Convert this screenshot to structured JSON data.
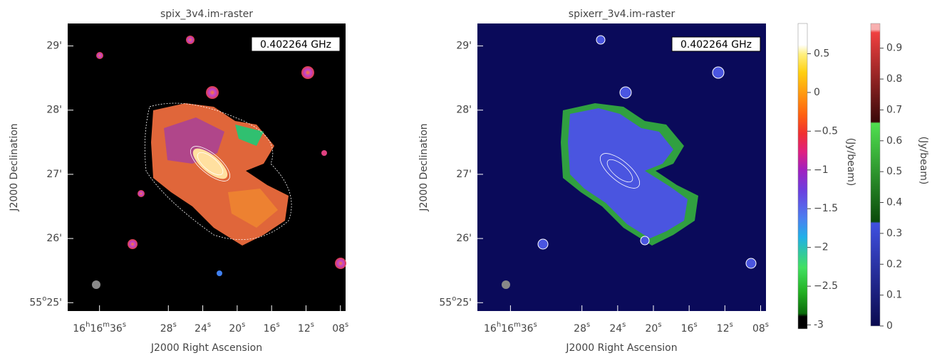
{
  "panels": [
    {
      "title": "spix_3v4.im-raster",
      "frequency": "0.402264 GHz",
      "xlabel": "J2000 Right Ascension",
      "ylabel": "J2000 Declination",
      "ralim": [
        39.7,
        7.4
      ],
      "declim": [
        24.87,
        29.35
      ],
      "rati": [
        {
          "value": 36,
          "label": [
            "16",
            "h",
            "16",
            "m",
            "36",
            "s"
          ]
        },
        {
          "value": 28,
          "label": [
            "28",
            "s"
          ]
        },
        {
          "value": 24,
          "label": [
            "24",
            "s"
          ]
        },
        {
          "value": 20,
          "label": [
            "20",
            "s"
          ]
        },
        {
          "value": 16,
          "label": [
            "16",
            "s"
          ]
        },
        {
          "value": 12,
          "label": [
            "12",
            "s"
          ]
        },
        {
          "value": 8,
          "label": [
            "08",
            "s"
          ]
        }
      ],
      "decticks": [
        {
          "value": 29,
          "label": [
            "29'"
          ]
        },
        {
          "value": 28,
          "label": [
            "28'"
          ]
        },
        {
          "value": 27,
          "label": [
            "27'"
          ]
        },
        {
          "value": 26,
          "label": [
            "26'"
          ]
        },
        {
          "value": 25,
          "label": [
            "55",
            "o",
            "25'"
          ]
        }
      ]
    },
    {
      "title": "spixerr_3v4.im-raster",
      "frequency": "0.402264 GHz",
      "xlabel": "J2000 Right Ascension",
      "ylabel": "J2000 Declination",
      "ralim": [
        39.7,
        7.4
      ],
      "declim": [
        24.87,
        29.35
      ],
      "rati": [
        {
          "value": 36,
          "label": [
            "16",
            "h",
            "16",
            "m",
            "36",
            "s"
          ]
        },
        {
          "value": 28,
          "label": [
            "28",
            "s"
          ]
        },
        {
          "value": 24,
          "label": [
            "24",
            "s"
          ]
        },
        {
          "value": 20,
          "label": [
            "20",
            "s"
          ]
        },
        {
          "value": 16,
          "label": [
            "16",
            "s"
          ]
        },
        {
          "value": 12,
          "label": [
            "12",
            "s"
          ]
        },
        {
          "value": 8,
          "label": [
            "08",
            "s"
          ]
        }
      ],
      "decticks": [
        {
          "value": 29,
          "label": [
            "29'"
          ]
        },
        {
          "value": 28,
          "label": [
            "28'"
          ]
        },
        {
          "value": 27,
          "label": [
            "27'"
          ]
        },
        {
          "value": 26,
          "label": [
            "26'"
          ]
        },
        {
          "value": 25,
          "label": [
            "55",
            "o",
            "25'"
          ]
        }
      ]
    }
  ],
  "colorbars": [
    {
      "label": "(Jy/beam)",
      "lim": [
        -3.05,
        0.89
      ],
      "ticks": [
        -3,
        {
          "value": -2.5,
          "label": "−2.5"
        },
        {
          "value": -2,
          "label": "−2"
        },
        {
          "value": -1.5,
          "label": "−1.5"
        },
        {
          "value": -1,
          "label": "−1"
        },
        {
          "value": -0.5,
          "label": "−0.5"
        },
        0,
        0.5
      ]
    },
    {
      "label": "(Jy/beam)",
      "lim": [
        0,
        0.98
      ],
      "ticks": [
        0,
        0.1,
        0.2,
        0.3,
        0.4,
        0.5,
        0.6,
        0.7,
        0.8,
        0.9
      ]
    }
  ]
}
